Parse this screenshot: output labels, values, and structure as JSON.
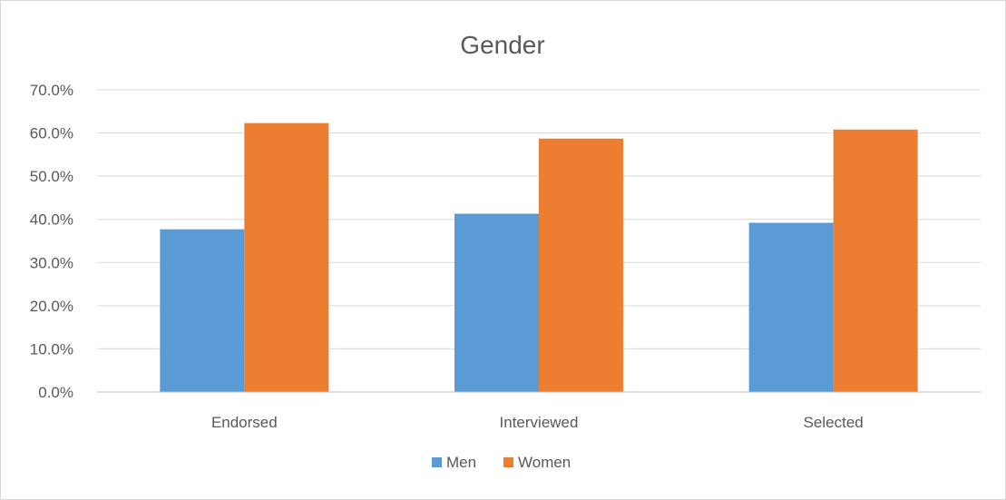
{
  "chart_data": {
    "type": "bar",
    "title": "Gender",
    "xlabel": "",
    "ylabel": "",
    "categories": [
      "Endorsed",
      "Interviewed",
      "Selected"
    ],
    "series": [
      {
        "name": "Men",
        "values": [
          37.7,
          41.3,
          39.2
        ],
        "color": "#5B9BD5"
      },
      {
        "name": "Women",
        "values": [
          62.3,
          58.7,
          60.8
        ],
        "color": "#ED7D31"
      }
    ],
    "ylim": [
      0,
      70
    ],
    "y_ticks": [
      0,
      10,
      20,
      30,
      40,
      50,
      60,
      70
    ],
    "y_tick_labels": [
      "0.0%",
      "10.0%",
      "20.0%",
      "30.0%",
      "40.0%",
      "50.0%",
      "60.0%",
      "70.0%"
    ],
    "grid": true,
    "legend": "bottom"
  }
}
